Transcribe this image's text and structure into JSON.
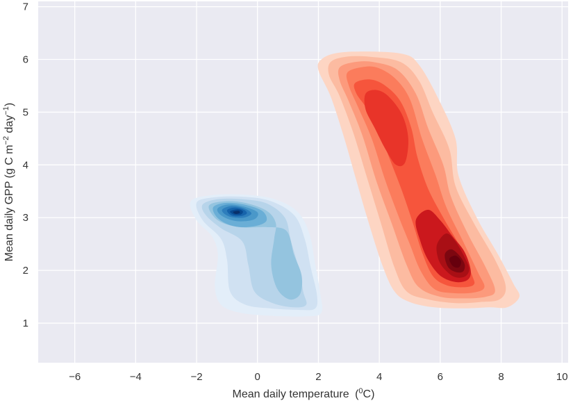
{
  "chart_data": {
    "type": "kde-contour",
    "xlabel": "Mean daily temperature",
    "xlabel_unit_base": "0",
    "xlabel_unit_sup": "0",
    "xlabel_unit_suffix": "C",
    "ylabel": "Mean daily GPP (g C m",
    "ylabel_sup1": "−2",
    "ylabel_mid": " day",
    "ylabel_sup2": "−1",
    "ylabel_end": ")",
    "xlim": [
      -7.2,
      10.2
    ],
    "ylim": [
      0.25,
      7.1
    ],
    "xticks": [
      -6,
      -4,
      -2,
      0,
      2,
      4,
      6,
      8,
      10
    ],
    "xtick_labels": [
      "−6",
      "−4",
      "−2",
      "0",
      "2",
      "4",
      "6",
      "8",
      "10"
    ],
    "yticks": [
      1,
      2,
      3,
      4,
      5,
      6,
      7
    ],
    "ytick_labels": [
      "1",
      "2",
      "3",
      "4",
      "5",
      "6",
      "7"
    ],
    "grid": true,
    "background": "#eaeaf2",
    "series": [
      {
        "colormap": "Blues",
        "colors": [
          "#e3eef9",
          "#d0e1f2",
          "#b7d4ea",
          "#94c4df",
          "#6aaed6",
          "#4a98c9",
          "#2e7ebc",
          "#1764ab",
          "#084a91",
          "#08306b"
        ],
        "levels": [
          [
            [
              -2.2,
              3.3
            ],
            [
              -1.6,
              3.42
            ],
            [
              -0.6,
              3.44
            ],
            [
              0.5,
              3.36
            ],
            [
              1.3,
              3.12
            ],
            [
              1.7,
              2.7
            ],
            [
              1.9,
              2.1
            ],
            [
              2.05,
              1.6
            ],
            [
              2.1,
              1.2
            ],
            [
              1.6,
              1.13
            ],
            [
              0.4,
              1.14
            ],
            [
              -0.6,
              1.2
            ],
            [
              -1.2,
              1.35
            ],
            [
              -1.4,
              1.7
            ],
            [
              -1.3,
              2.3
            ],
            [
              -1.5,
              2.65
            ],
            [
              -2.0,
              2.95
            ]
          ],
          [
            [
              -2.0,
              3.28
            ],
            [
              -1.5,
              3.38
            ],
            [
              -0.6,
              3.4
            ],
            [
              0.4,
              3.32
            ],
            [
              1.2,
              3.05
            ],
            [
              1.55,
              2.6
            ],
            [
              1.75,
              2.05
            ],
            [
              1.95,
              1.55
            ],
            [
              1.9,
              1.28
            ],
            [
              1.4,
              1.25
            ],
            [
              0.4,
              1.28
            ],
            [
              -0.4,
              1.35
            ],
            [
              -0.9,
              1.6
            ],
            [
              -1.0,
              2.2
            ],
            [
              -1.2,
              2.6
            ],
            [
              -1.8,
              2.95
            ]
          ],
          [
            [
              -1.8,
              3.25
            ],
            [
              -1.3,
              3.35
            ],
            [
              -0.5,
              3.35
            ],
            [
              0.3,
              3.27
            ],
            [
              0.9,
              3.0
            ],
            [
              1.1,
              2.55
            ],
            [
              1.35,
              2.05
            ],
            [
              1.5,
              1.6
            ],
            [
              1.6,
              1.35
            ],
            [
              1.2,
              1.3
            ],
            [
              0.5,
              1.38
            ],
            [
              -0.1,
              1.6
            ],
            [
              -0.3,
              2.1
            ],
            [
              -0.5,
              2.55
            ],
            [
              -1.2,
              2.8
            ],
            [
              -1.7,
              3.05
            ]
          ],
          [
            [
              -1.6,
              3.22
            ],
            [
              -1.1,
              3.31
            ],
            [
              -0.4,
              3.28
            ],
            [
              0.3,
              3.13
            ],
            [
              0.6,
              2.9
            ],
            [
              0.55,
              2.6
            ],
            [
              0.45,
              2.1
            ],
            [
              0.65,
              1.65
            ],
            [
              1.05,
              1.45
            ],
            [
              1.4,
              1.55
            ],
            [
              1.45,
              1.9
            ],
            [
              1.2,
              2.3
            ],
            [
              0.95,
              2.75
            ],
            [
              0.3,
              2.82
            ],
            [
              -0.6,
              2.82
            ],
            [
              -1.3,
              2.95
            ]
          ],
          [
            [
              -1.45,
              3.2
            ],
            [
              -1.05,
              3.28
            ],
            [
              -0.45,
              3.25
            ],
            [
              0.15,
              3.13
            ],
            [
              0.3,
              2.95
            ],
            [
              0.0,
              2.85
            ],
            [
              -0.55,
              2.82
            ],
            [
              -1.0,
              2.88
            ],
            [
              -1.35,
              3.02
            ]
          ],
          [
            [
              -1.3,
              3.18
            ],
            [
              -0.95,
              3.25
            ],
            [
              -0.45,
              3.21
            ],
            [
              0.0,
              3.1
            ],
            [
              -0.1,
              2.97
            ],
            [
              -0.55,
              2.93
            ],
            [
              -0.95,
              2.97
            ],
            [
              -1.25,
              3.07
            ]
          ],
          [
            [
              -1.15,
              3.16
            ],
            [
              -0.85,
              3.22
            ],
            [
              -0.45,
              3.18
            ],
            [
              -0.2,
              3.08
            ],
            [
              -0.45,
              3.0
            ],
            [
              -0.85,
              3.01
            ],
            [
              -1.1,
              3.08
            ]
          ],
          [
            [
              -1.0,
              3.14
            ],
            [
              -0.75,
              3.19
            ],
            [
              -0.45,
              3.15
            ],
            [
              -0.35,
              3.08
            ],
            [
              -0.55,
              3.03
            ],
            [
              -0.85,
              3.04
            ]
          ],
          [
            [
              -0.9,
              3.12
            ],
            [
              -0.65,
              3.16
            ],
            [
              -0.48,
              3.12
            ],
            [
              -0.55,
              3.06
            ],
            [
              -0.78,
              3.06
            ]
          ],
          [
            [
              -0.8,
              3.11
            ],
            [
              -0.62,
              3.13
            ],
            [
              -0.58,
              3.09
            ],
            [
              -0.72,
              3.07
            ]
          ]
        ]
      },
      {
        "colormap": "Reds",
        "colors": [
          "#fdd5c3",
          "#fcbba1",
          "#fc9a7c",
          "#fb7c5c",
          "#f6553c",
          "#e83429",
          "#cb181d",
          "#a90f15",
          "#7d0710",
          "#67000d"
        ],
        "levels": [
          [
            [
              2.1,
              6.0
            ],
            [
              2.6,
              6.12
            ],
            [
              3.6,
              6.15
            ],
            [
              4.8,
              6.1
            ],
            [
              5.3,
              5.9
            ],
            [
              5.9,
              5.3
            ],
            [
              6.5,
              4.5
            ],
            [
              6.6,
              3.8
            ],
            [
              7.2,
              3.0
            ],
            [
              7.9,
              2.3
            ],
            [
              8.4,
              1.75
            ],
            [
              8.6,
              1.5
            ],
            [
              8.2,
              1.3
            ],
            [
              7.6,
              1.3
            ],
            [
              6.8,
              1.28
            ],
            [
              5.8,
              1.3
            ],
            [
              5.0,
              1.4
            ],
            [
              4.5,
              1.6
            ],
            [
              4.1,
              2.1
            ],
            [
              3.6,
              3.0
            ],
            [
              3.2,
              3.8
            ],
            [
              2.8,
              4.6
            ],
            [
              2.4,
              5.3
            ],
            [
              2.0,
              5.8
            ]
          ],
          [
            [
              2.4,
              5.95
            ],
            [
              2.9,
              6.05
            ],
            [
              3.7,
              6.05
            ],
            [
              4.7,
              5.95
            ],
            [
              5.3,
              5.6
            ],
            [
              5.75,
              5.0
            ],
            [
              6.3,
              4.3
            ],
            [
              6.5,
              3.6
            ],
            [
              7.1,
              2.9
            ],
            [
              7.8,
              2.2
            ],
            [
              8.15,
              1.7
            ],
            [
              7.95,
              1.45
            ],
            [
              7.3,
              1.4
            ],
            [
              6.5,
              1.38
            ],
            [
              5.6,
              1.45
            ],
            [
              4.9,
              1.6
            ],
            [
              4.5,
              2.05
            ],
            [
              4.05,
              2.9
            ],
            [
              3.6,
              3.75
            ],
            [
              3.15,
              4.6
            ],
            [
              2.7,
              5.3
            ],
            [
              2.35,
              5.7
            ]
          ],
          [
            [
              2.7,
              5.85
            ],
            [
              3.2,
              5.95
            ],
            [
              3.8,
              5.95
            ],
            [
              4.6,
              5.8
            ],
            [
              5.2,
              5.35
            ],
            [
              5.6,
              4.7
            ],
            [
              6.1,
              4.0
            ],
            [
              6.35,
              3.4
            ],
            [
              6.9,
              2.7
            ],
            [
              7.5,
              2.05
            ],
            [
              7.8,
              1.62
            ],
            [
              7.5,
              1.5
            ],
            [
              6.8,
              1.47
            ],
            [
              6.0,
              1.5
            ],
            [
              5.3,
              1.68
            ],
            [
              4.9,
              2.1
            ],
            [
              4.4,
              2.9
            ],
            [
              3.9,
              3.7
            ],
            [
              3.45,
              4.55
            ],
            [
              3.0,
              5.2
            ],
            [
              2.7,
              5.6
            ]
          ],
          [
            [
              2.95,
              5.75
            ],
            [
              3.4,
              5.85
            ],
            [
              3.9,
              5.85
            ],
            [
              4.5,
              5.65
            ],
            [
              5.0,
              5.25
            ],
            [
              5.4,
              4.5
            ],
            [
              5.85,
              3.8
            ],
            [
              6.2,
              3.2
            ],
            [
              6.75,
              2.55
            ],
            [
              7.25,
              1.95
            ],
            [
              7.45,
              1.68
            ],
            [
              7.1,
              1.58
            ],
            [
              6.4,
              1.57
            ],
            [
              5.8,
              1.65
            ],
            [
              5.35,
              2.0
            ],
            [
              5.0,
              2.5
            ],
            [
              4.65,
              3.0
            ],
            [
              4.2,
              3.7
            ],
            [
              3.75,
              4.5
            ],
            [
              3.3,
              5.1
            ],
            [
              3.0,
              5.5
            ]
          ],
          [
            [
              3.2,
              5.55
            ],
            [
              3.7,
              5.62
            ],
            [
              4.2,
              5.5
            ],
            [
              4.7,
              5.2
            ],
            [
              5.05,
              4.7
            ],
            [
              5.25,
              4.15
            ],
            [
              5.6,
              3.55
            ],
            [
              6.1,
              3.0
            ],
            [
              6.65,
              2.45
            ],
            [
              7.05,
              1.9
            ],
            [
              7.1,
              1.73
            ],
            [
              6.75,
              1.68
            ],
            [
              6.2,
              1.72
            ],
            [
              5.75,
              1.9
            ],
            [
              5.4,
              2.35
            ],
            [
              5.1,
              2.9
            ],
            [
              4.75,
              3.5
            ],
            [
              4.35,
              4.1
            ],
            [
              3.95,
              4.7
            ],
            [
              3.55,
              5.1
            ],
            [
              3.25,
              5.35
            ]
          ],
          [
            [
              3.55,
              5.35
            ],
            [
              3.9,
              5.42
            ],
            [
              4.3,
              5.3
            ],
            [
              4.75,
              4.95
            ],
            [
              4.95,
              4.5
            ],
            [
              4.85,
              4.05
            ],
            [
              4.55,
              4.0
            ],
            [
              4.2,
              4.3
            ],
            [
              3.85,
              4.7
            ],
            [
              3.55,
              5.05
            ]
          ],
          [
            [
              5.2,
              2.95
            ],
            [
              5.6,
              3.15
            ],
            [
              6.0,
              2.95
            ],
            [
              6.4,
              2.65
            ],
            [
              6.8,
              2.35
            ],
            [
              7.0,
              2.0
            ],
            [
              6.9,
              1.82
            ],
            [
              6.5,
              1.78
            ],
            [
              6.0,
              1.9
            ],
            [
              5.6,
              2.2
            ],
            [
              5.35,
              2.55
            ]
          ],
          [
            [
              5.9,
              2.5
            ],
            [
              6.2,
              2.7
            ],
            [
              6.5,
              2.55
            ],
            [
              6.8,
              2.25
            ],
            [
              6.95,
              2.02
            ],
            [
              6.8,
              1.88
            ],
            [
              6.45,
              1.88
            ],
            [
              6.1,
              2.05
            ],
            [
              5.92,
              2.25
            ]
          ],
          [
            [
              6.15,
              2.3
            ],
            [
              6.35,
              2.4
            ],
            [
              6.6,
              2.3
            ],
            [
              6.8,
              2.12
            ],
            [
              6.75,
              1.98
            ],
            [
              6.5,
              1.97
            ],
            [
              6.25,
              2.07
            ]
          ],
          [
            [
              6.3,
              2.22
            ],
            [
              6.5,
              2.28
            ],
            [
              6.68,
              2.18
            ],
            [
              6.62,
              2.06
            ],
            [
              6.42,
              2.08
            ]
          ]
        ]
      }
    ]
  }
}
